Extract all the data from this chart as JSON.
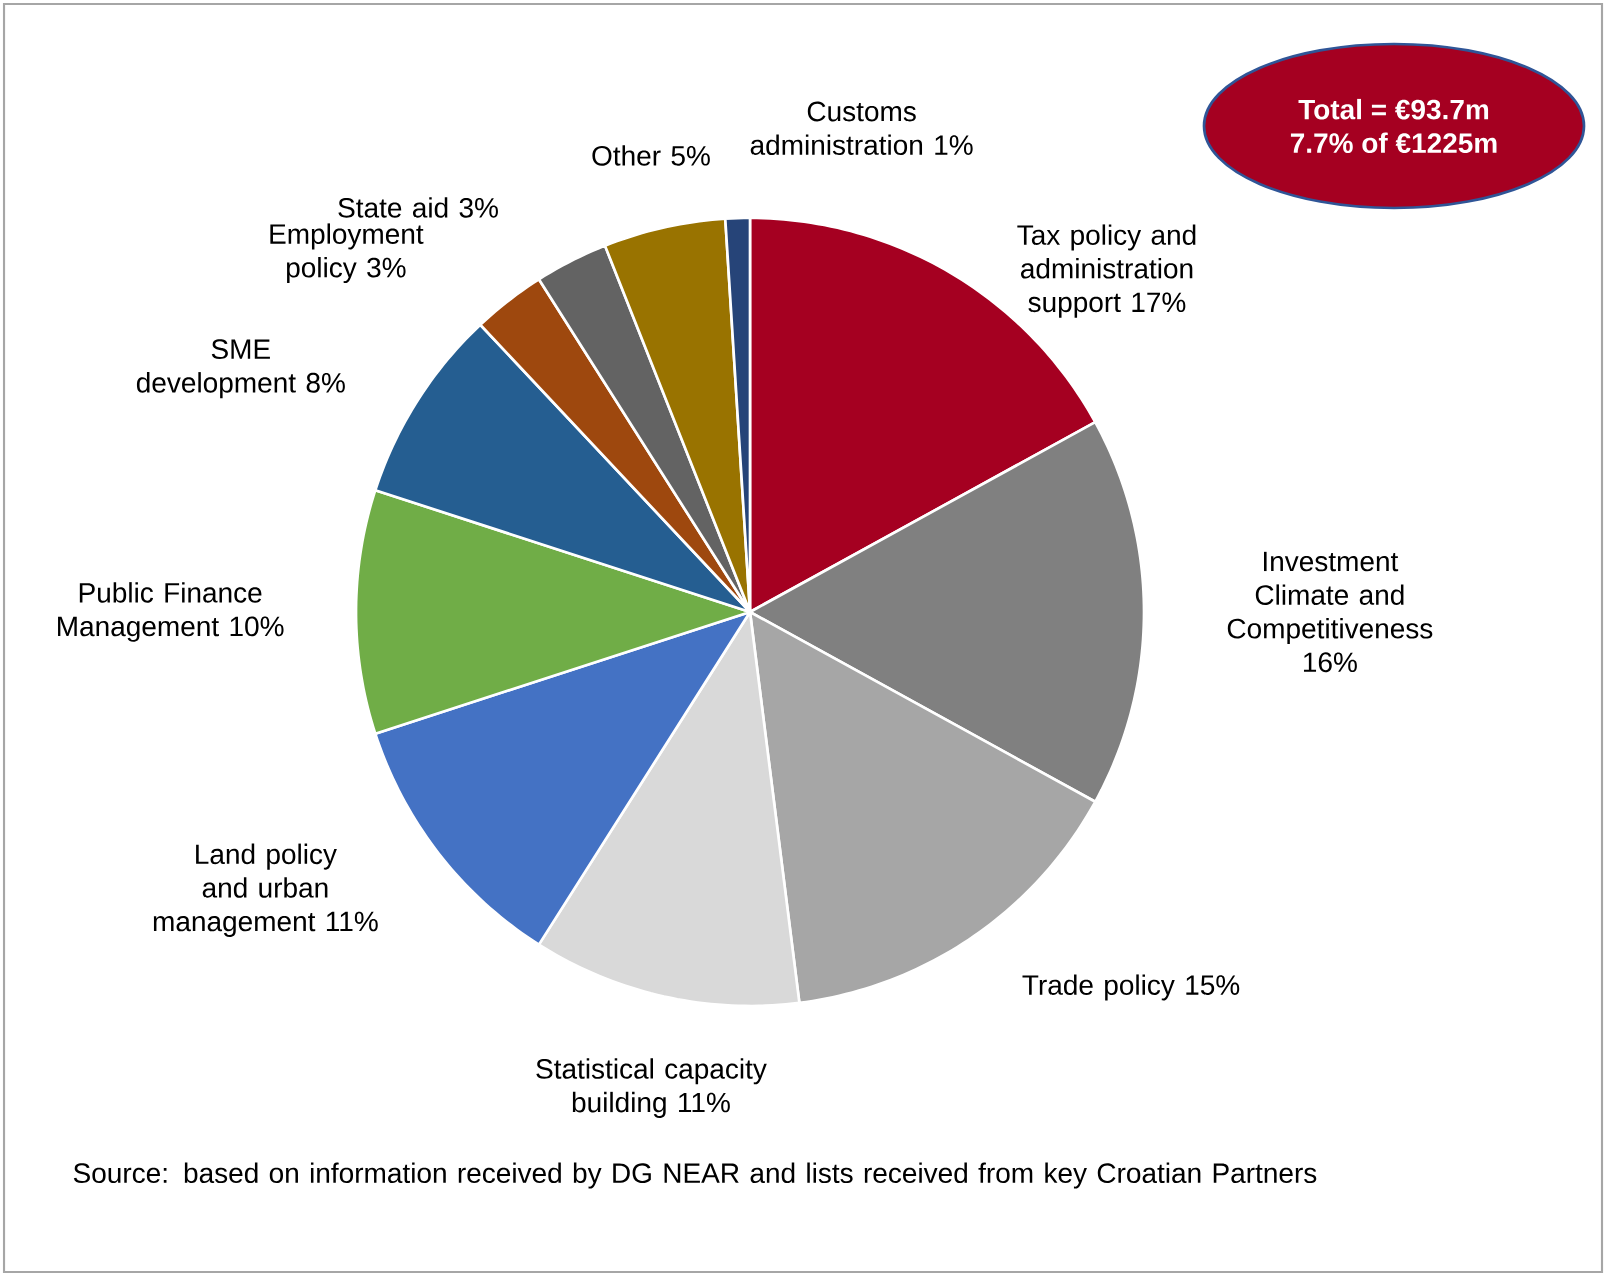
{
  "chart_data": {
    "type": "pie",
    "categories": [
      "Tax policy and administration support",
      "Investment Climate and Competitiveness",
      "Trade policy",
      "Statistical capacity building",
      "Land policy and urban management",
      "Public Finance Management",
      "SME development",
      "Employment policy",
      "State aid",
      "Other",
      "Customs administration"
    ],
    "values": [
      17,
      16,
      15,
      11,
      11,
      10,
      8,
      3,
      3,
      5,
      1
    ],
    "value_labels": [
      "17%",
      "16%",
      "15%",
      "11%",
      "11%",
      "10%",
      "8%",
      "3%",
      "3%",
      "5%",
      "1%"
    ],
    "colors": [
      "#a50021",
      "#808080",
      "#a6a6a6",
      "#d9d9d9",
      "#4472c4",
      "#70ad47",
      "#255e91",
      "#9e480e",
      "#636363",
      "#997300",
      "#264478"
    ],
    "annotations": [
      "Total = €93.7m",
      "7.7% of €1225m",
      "Source: based on information received by DG NEAR and lists received from key Croatian Partners"
    ]
  }
}
